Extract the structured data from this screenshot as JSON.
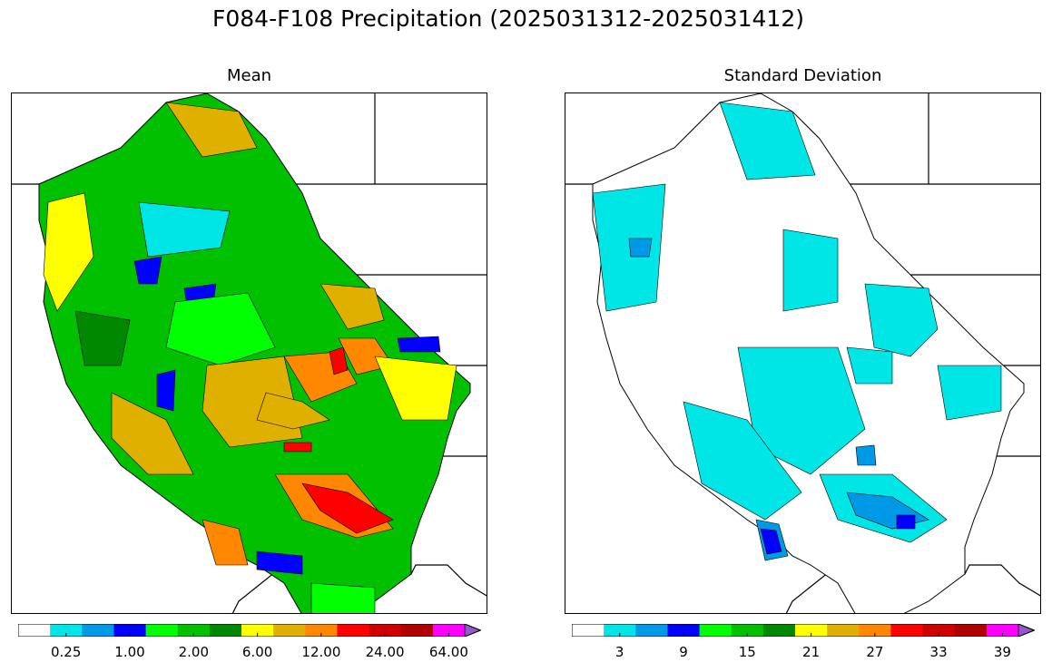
{
  "title": "F084-F108 Precipitation (2025031312-2025031412)",
  "panels": [
    {
      "title": "Mean",
      "colorbar_labels": [
        "0.25",
        "1.00",
        "2.00",
        "6.00",
        "12.00",
        "24.00",
        "64.00"
      ],
      "colorbar_label_bins": [
        1,
        3,
        5,
        7,
        9,
        11,
        13
      ]
    },
    {
      "title": "Standard Deviation",
      "colorbar_labels": [
        "3",
        "9",
        "15",
        "21",
        "27",
        "33",
        "39"
      ],
      "colorbar_label_bins": [
        1,
        3,
        5,
        7,
        9,
        11,
        13
      ]
    }
  ],
  "colors": {
    "scale": [
      "#ffffff",
      "#00e5e5",
      "#0099e6",
      "#0000ff",
      "#00ff00",
      "#00c000",
      "#008800",
      "#ffff00",
      "#e0b000",
      "#ff8800",
      "#ff0000",
      "#d00000",
      "#b00000",
      "#ff00ff",
      "#9955cc"
    ],
    "boundary": "#000000"
  }
}
